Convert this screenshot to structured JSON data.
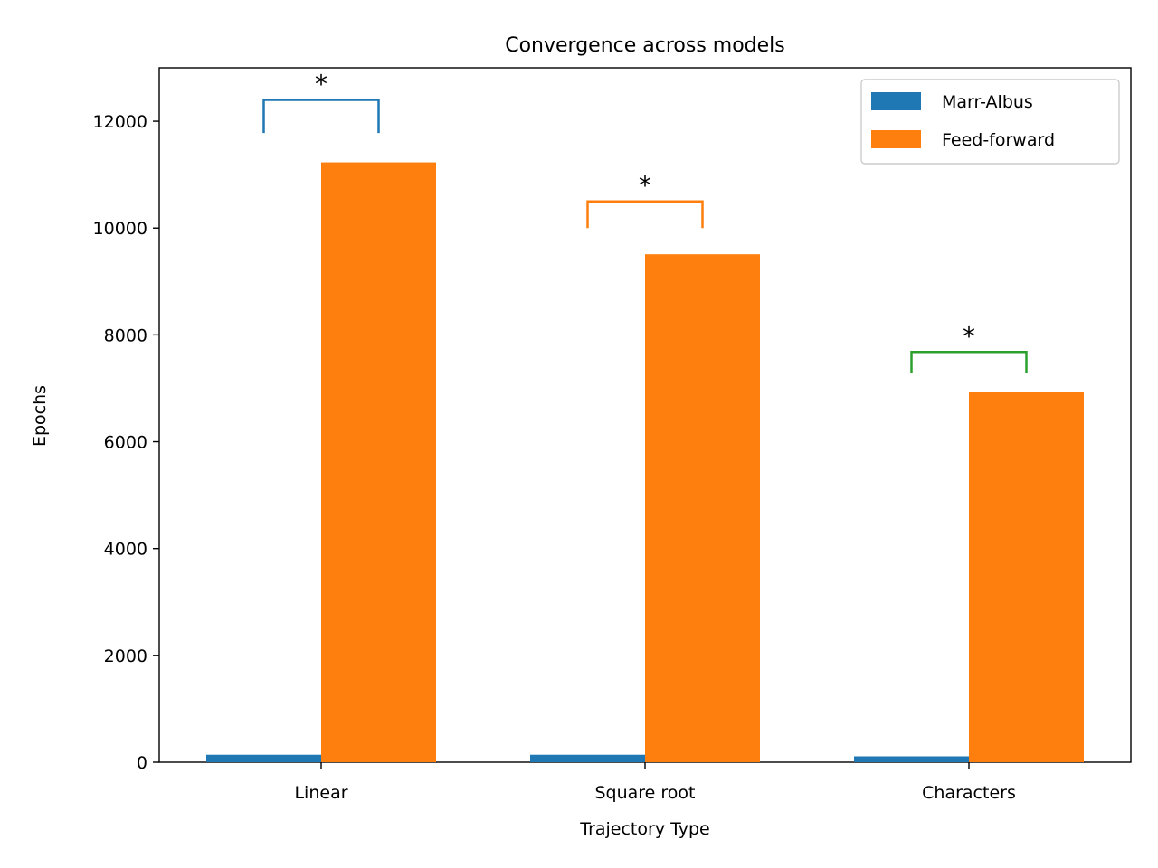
{
  "chart_data": {
    "type": "bar",
    "title": "Convergence across models",
    "xlabel": "Trajectory Type",
    "ylabel": "Epochs",
    "categories": [
      "Linear",
      "Square root",
      "Characters"
    ],
    "ylim": [
      0,
      13000
    ],
    "yticks": [
      0,
      2000,
      4000,
      6000,
      8000,
      10000,
      12000
    ],
    "grid": false,
    "legend_position": "top-right",
    "series": [
      {
        "name": "Marr-Albus",
        "color": "#1f77b4",
        "values": [
          140,
          140,
          110
        ]
      },
      {
        "name": "Feed-forward",
        "color": "#ff7f0e",
        "values": [
          11230,
          9510,
          6940
        ]
      }
    ],
    "significance": [
      {
        "category": "Linear",
        "label": "*",
        "bracket_y": 12400,
        "leg_bottom_y": 11780,
        "color": "#1f77b4"
      },
      {
        "category": "Square root",
        "label": "*",
        "bracket_y": 10500,
        "leg_bottom_y": 10000,
        "color": "#ff7f0e"
      },
      {
        "category": "Characters",
        "label": "*",
        "bracket_y": 7680,
        "leg_bottom_y": 7280,
        "color": "#2ca02c"
      }
    ]
  }
}
